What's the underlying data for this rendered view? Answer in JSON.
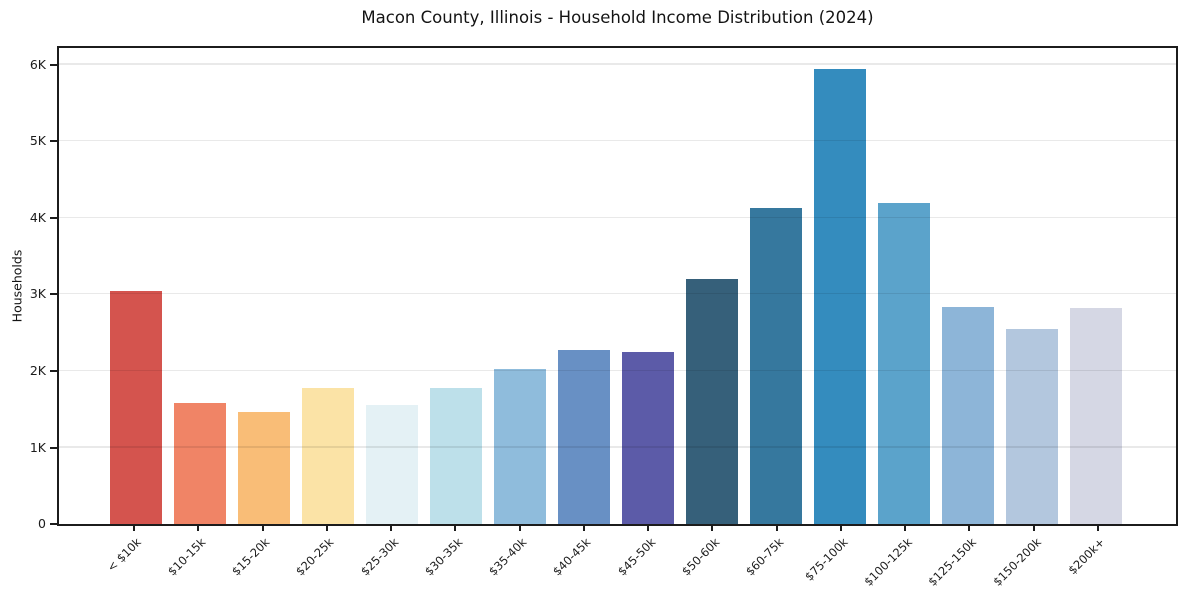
{
  "title": "Macon County, Illinois - Household Income Distribution (2024)",
  "chart_data": {
    "type": "bar",
    "title": "Macon County, Illinois - Household Income Distribution (2024)",
    "xlabel": "",
    "ylabel": "Households",
    "categories": [
      "< $10k",
      "$10-15k",
      "$15-20k",
      "$20-25k",
      "$25-30k",
      "$30-35k",
      "$35-40k",
      "$40-45k",
      "$45-50k",
      "$50-60k",
      "$60-75k",
      "$75-100k",
      "$100-125k",
      "$125-150k",
      "$150-200k",
      "$200k+"
    ],
    "values": [
      3050,
      1580,
      1460,
      1780,
      1550,
      1780,
      2020,
      2270,
      2250,
      3200,
      4130,
      5940,
      4200,
      2840,
      2550,
      2820
    ],
    "bar_colors": [
      "#d4544e",
      "#f08466",
      "#f9bd77",
      "#fbe3a6",
      "#e4f1f5",
      "#bde0ea",
      "#8fbcdc",
      "#6890c4",
      "#5c5ba8",
      "#36607a",
      "#36789e",
      "#348cbe",
      "#5ba3cb",
      "#8db5d8",
      "#b3c7de",
      "#d5d7e4"
    ],
    "ylim": [
      0,
      6220
    ],
    "yticks": [
      {
        "label": "0",
        "value": 0
      },
      {
        "label": "1K",
        "value": 1000
      },
      {
        "label": "2K",
        "value": 2000
      },
      {
        "label": "3K",
        "value": 3000
      },
      {
        "label": "4K",
        "value": 4000
      },
      {
        "label": "5K",
        "value": 5000
      },
      {
        "label": "6K",
        "value": 6000
      }
    ],
    "grid": "horizontal",
    "legend": "none",
    "background": "#ffffff",
    "spine_color": "#1c1c1c",
    "grid_color": "#ebebeb"
  }
}
